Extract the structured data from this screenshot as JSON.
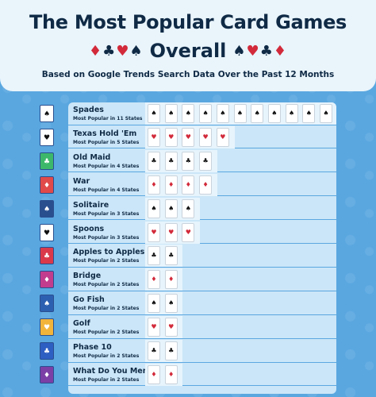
{
  "header": {
    "title_line1": "The Most Popular Card Games",
    "title_line2": "Overall",
    "suits_left": [
      "♦",
      "♣",
      "♥",
      "♠"
    ],
    "suits_right": [
      "♠",
      "♥",
      "♣",
      "♦"
    ],
    "subtitle": "Based on Google Trends Search Data Over the Past 12 Months"
  },
  "chart_data": {
    "type": "bar",
    "title": "The Most Popular Card Games Overall",
    "subtitle": "Based on Google Trends Search Data Over the Past 12 Months",
    "categories": [
      "Spades",
      "Texas Hold 'Em",
      "Old Maid",
      "War",
      "Solitaire",
      "Spoons",
      "Apples to Apples",
      "Bridge",
      "Go Fish",
      "Golf",
      "Phase 10",
      "What Do You Meme?"
    ],
    "values": [
      11,
      5,
      4,
      4,
      3,
      3,
      2,
      2,
      2,
      2,
      2,
      2
    ],
    "value_labels": [
      "Most Popular in 11 States",
      "Most Popular in 5 States",
      "Most Popular in 4 States",
      "Most Popular in 4 States",
      "Most Popular in 3 States",
      "Most Popular in 3 States",
      "Most Popular in 2 States",
      "Most Popular in 2 States",
      "Most Popular in 2 States",
      "Most Popular in 2 States",
      "Most Popular in 2 States",
      "Most Popular in 2 States"
    ],
    "mark_suits": [
      "♠",
      "♥",
      "♣",
      "♦",
      "♠",
      "♥",
      "♣",
      "♦",
      "♠",
      "♥",
      "♣",
      "♦"
    ],
    "icon_colors": [
      "#ffffff",
      "#ffffff",
      "#3db86b",
      "#e04a4a",
      "#2a4f8f",
      "#ffffff",
      "#d9394a",
      "#c23d8e",
      "#2c5fb0",
      "#f2b43a",
      "#2d5ec2",
      "#7b3fa6"
    ],
    "xlabel": "",
    "ylabel": ""
  }
}
